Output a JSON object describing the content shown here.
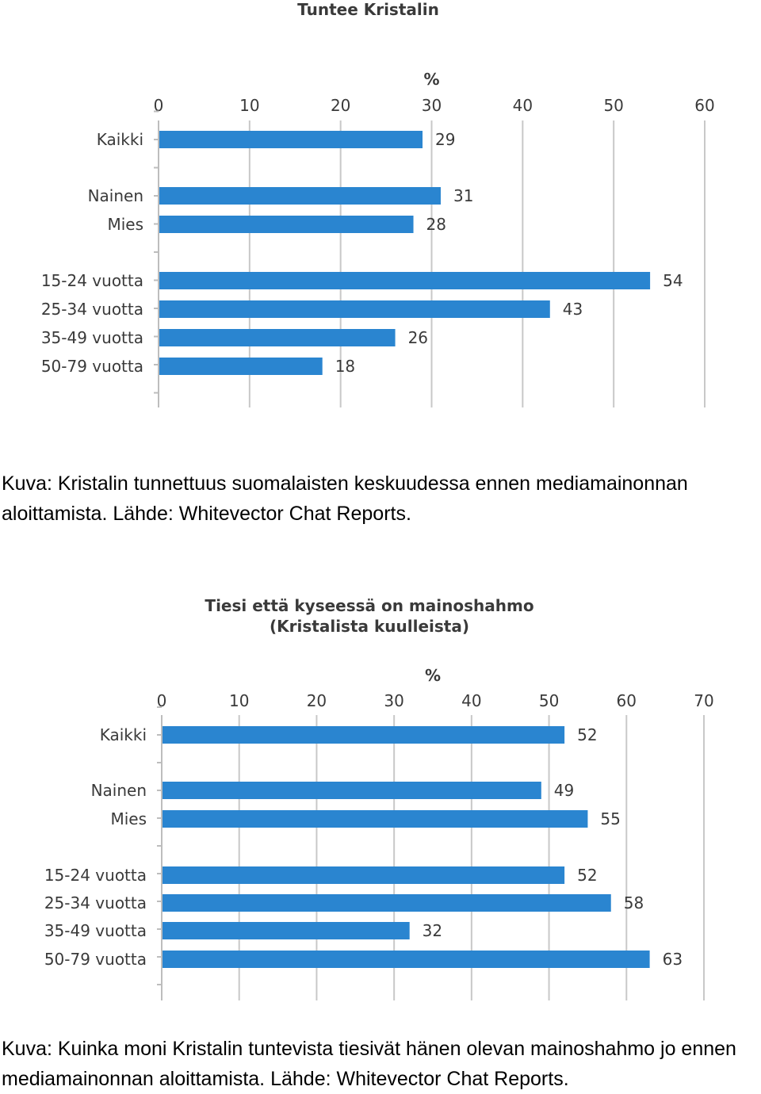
{
  "chart_data": [
    {
      "type": "bar",
      "orientation": "horizontal",
      "title": "Tuntee Kristalin",
      "axis_unit": "%",
      "categories": [
        "Kaikki",
        "Nainen",
        "Mies",
        "15-24 vuotta",
        "25-34 vuotta",
        "35-49 vuotta",
        "50-79 vuotta"
      ],
      "values": [
        29,
        31,
        28,
        54,
        43,
        26,
        18
      ],
      "xlim": [
        0,
        60
      ],
      "xticks": [
        "0",
        "10",
        "20",
        "30",
        "40",
        "50",
        "60"
      ],
      "grid": true,
      "bar_color": "#2a85d0"
    },
    {
      "type": "bar",
      "orientation": "horizontal",
      "title": "Tiesi että kyseessä on mainoshahmo",
      "subtitle": "(Kristalista kuulleista)",
      "axis_unit": "%",
      "categories": [
        "Kaikki",
        "Nainen",
        "Mies",
        "15-24 vuotta",
        "25-34 vuotta",
        "35-49 vuotta",
        "50-79 vuotta"
      ],
      "values": [
        52,
        49,
        55,
        52,
        58,
        32,
        63
      ],
      "xlim": [
        0,
        70
      ],
      "xticks": [
        "0",
        "10",
        "20",
        "30",
        "40",
        "50",
        "60",
        "70"
      ],
      "grid": true,
      "bar_color": "#2a85d0"
    }
  ],
  "captions": [
    "Kuva: Kristalin tunnettuus suomalaisten keskuudessa ennen mediamainonnan aloittamista. Lähde: Whitevector Chat Reports.",
    "Kuva: Kuinka moni Kristalin tuntevista tiesivät hänen olevan mainoshahmo jo ennen mediamainonnan aloittamista. Lähde: Whitevector Chat Reports."
  ]
}
